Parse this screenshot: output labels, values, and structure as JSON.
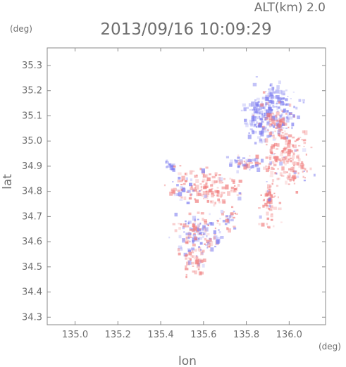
{
  "chart_data": {
    "type": "scatter",
    "title": "2013/09/16 10:09:29",
    "subtitle": "ALT(km) 2.0",
    "xlabel": "lon",
    "ylabel": "lat",
    "xunit": "(deg)",
    "yunit": "(deg)",
    "xlim": [
      134.87,
      136.17
    ],
    "ylim": [
      34.27,
      35.37
    ],
    "xticks": [
      "135.0",
      "135.2",
      "135.4",
      "135.6",
      "135.8",
      "136.0"
    ],
    "yticks": [
      "34.3",
      "34.4",
      "34.5",
      "34.6",
      "34.7",
      "34.8",
      "34.9",
      "35.0",
      "35.1",
      "35.2",
      "35.3"
    ],
    "grid": false,
    "colors": {
      "negative": "#7c7cf0",
      "positive": "#f07c7c",
      "axis": "#8a8a8a",
      "text": "#6e6e6e"
    },
    "clusters": [
      {
        "lon": 135.93,
        "lat": 35.13,
        "spread_lon": 0.07,
        "spread_lat": 0.06,
        "sign": -1,
        "density": 170
      },
      {
        "lon": 135.86,
        "lat": 35.07,
        "spread_lon": 0.05,
        "spread_lat": 0.05,
        "sign": -1,
        "density": 80
      },
      {
        "lon": 135.99,
        "lat": 34.93,
        "spread_lon": 0.07,
        "spread_lat": 0.08,
        "sign": 1,
        "density": 190
      },
      {
        "lon": 135.95,
        "lat": 35.06,
        "spread_lon": 0.04,
        "spread_lat": 0.04,
        "sign": 1,
        "density": 50
      },
      {
        "lon": 135.91,
        "lat": 34.76,
        "spread_lon": 0.03,
        "spread_lat": 0.06,
        "sign": 1,
        "density": 60
      },
      {
        "lon": 135.64,
        "lat": 34.81,
        "spread_lon": 0.05,
        "spread_lat": 0.05,
        "sign": 1,
        "density": 90
      },
      {
        "lon": 135.52,
        "lat": 34.81,
        "spread_lon": 0.05,
        "spread_lat": 0.04,
        "sign": 0,
        "density": 60
      },
      {
        "lon": 135.58,
        "lat": 34.63,
        "spread_lon": 0.07,
        "spread_lat": 0.05,
        "sign": 0,
        "density": 150
      },
      {
        "lon": 135.56,
        "lat": 34.52,
        "spread_lon": 0.03,
        "spread_lat": 0.04,
        "sign": 1,
        "density": 40
      },
      {
        "lon": 135.8,
        "lat": 34.91,
        "spread_lon": 0.05,
        "spread_lat": 0.02,
        "sign": 0,
        "density": 50
      },
      {
        "lon": 135.45,
        "lat": 34.9,
        "spread_lon": 0.015,
        "spread_lat": 0.015,
        "sign": -1,
        "density": 20
      },
      {
        "lon": 135.72,
        "lat": 34.69,
        "spread_lon": 0.02,
        "spread_lat": 0.03,
        "sign": 0,
        "density": 25
      },
      {
        "lon": 135.75,
        "lat": 34.81,
        "spread_lon": 0.02,
        "spread_lat": 0.03,
        "sign": 1,
        "density": 20
      }
    ]
  }
}
